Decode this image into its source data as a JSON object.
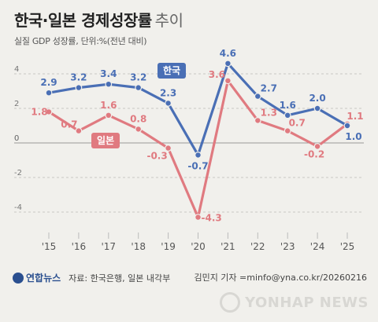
{
  "header": {
    "title_bold": "한국·일본 경제성장률",
    "title_light": "추이",
    "subtitle": "실질 GDP 성장률, 단위:%(전년 대비)"
  },
  "chart_data": {
    "type": "line",
    "categories": [
      "'15",
      "'16",
      "'17",
      "'18",
      "'19",
      "'20",
      "'21",
      "'22",
      "'23",
      "'24",
      "'25"
    ],
    "ylim": [
      -5,
      5
    ],
    "yticks": [
      4,
      2,
      0,
      -2,
      -4
    ],
    "grid": true,
    "series": [
      {
        "name": "한국",
        "color": "#4a6fb5",
        "values": [
          2.9,
          3.2,
          3.4,
          3.2,
          2.3,
          -0.7,
          4.6,
          2.7,
          1.6,
          2.0,
          1.0
        ]
      },
      {
        "name": "일본",
        "color": "#e07a80",
        "values": [
          1.8,
          0.7,
          1.6,
          0.8,
          -0.3,
          -4.3,
          3.6,
          1.3,
          0.7,
          -0.2,
          1.1
        ]
      }
    ]
  },
  "footer": {
    "logo": "연합뉴스",
    "source": "자료: 한국은행, 일본 내각부",
    "credit": "김민지 기자 =minfo@yna.co.kr/20260216",
    "watermark": "YONHAP NEWS"
  }
}
